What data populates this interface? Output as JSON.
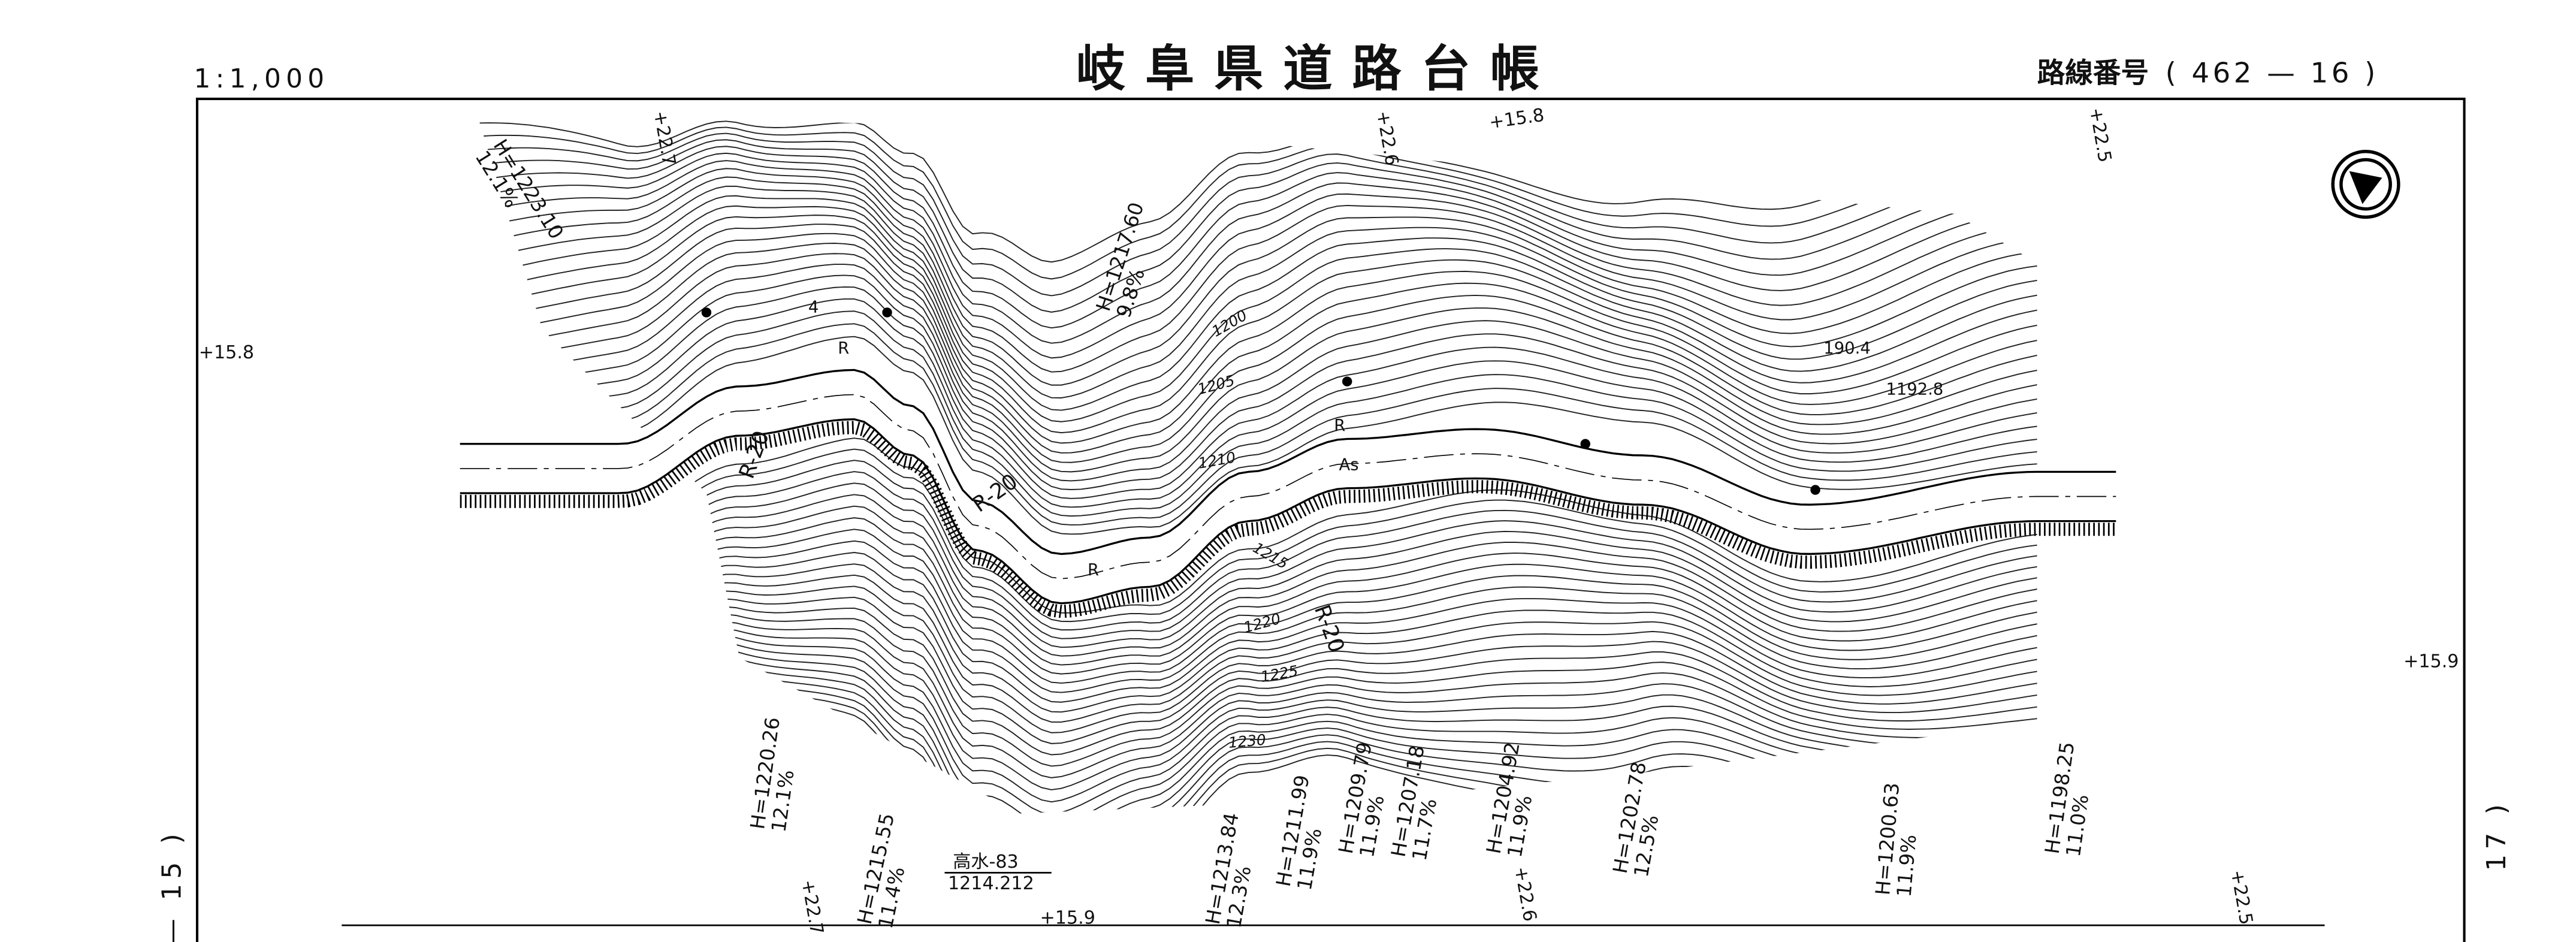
{
  "header": {
    "scale": "1:1,000",
    "title": "岐阜県道路台帳",
    "route_label": "路線番号",
    "route_number": "( 462 — 16 )"
  },
  "adjacent_sheets": {
    "left": "— 15 )",
    "right": "17 )"
  },
  "stations": [
    "+22.7",
    "+22.6",
    "+15.8",
    "+22.5",
    "+15.8",
    "+15.9",
    "+22.7",
    "+15.9",
    "+22.6",
    "+22.5"
  ],
  "elevations": [
    {
      "height": "H=1223.10",
      "grade": "12.1%"
    },
    {
      "height": "H=1217.60",
      "grade": "9.8%"
    },
    {
      "height": "H=1220.26",
      "grade": "12.1%"
    },
    {
      "height": "H=1215.55",
      "grade": "11.4%"
    },
    {
      "height": "H=1213.84",
      "grade": "12.3%"
    },
    {
      "height": "H=1211.99",
      "grade": "11.9%"
    },
    {
      "height": "H=1209.79",
      "grade": "11.9%"
    },
    {
      "height": "H=1207.18",
      "grade": "11.7%"
    },
    {
      "height": "H=1204.92",
      "grade": "11.9%"
    },
    {
      "height": "H=1202.78",
      "grade": "12.5%"
    },
    {
      "height": "H=1200.63",
      "grade": "11.9%"
    },
    {
      "height": "H=1198.25",
      "grade": "11.0%"
    }
  ],
  "contours": [
    "1200",
    "1205",
    "1210",
    "1215",
    "1220",
    "1225",
    "1230"
  ],
  "annotations": [
    "R-20",
    "R-20",
    "R-20",
    "As",
    "190.4",
    "1192.8",
    "4",
    "R",
    "R",
    "R"
  ],
  "benchmark": {
    "name": "高水-83",
    "elevation": "1214.212"
  }
}
